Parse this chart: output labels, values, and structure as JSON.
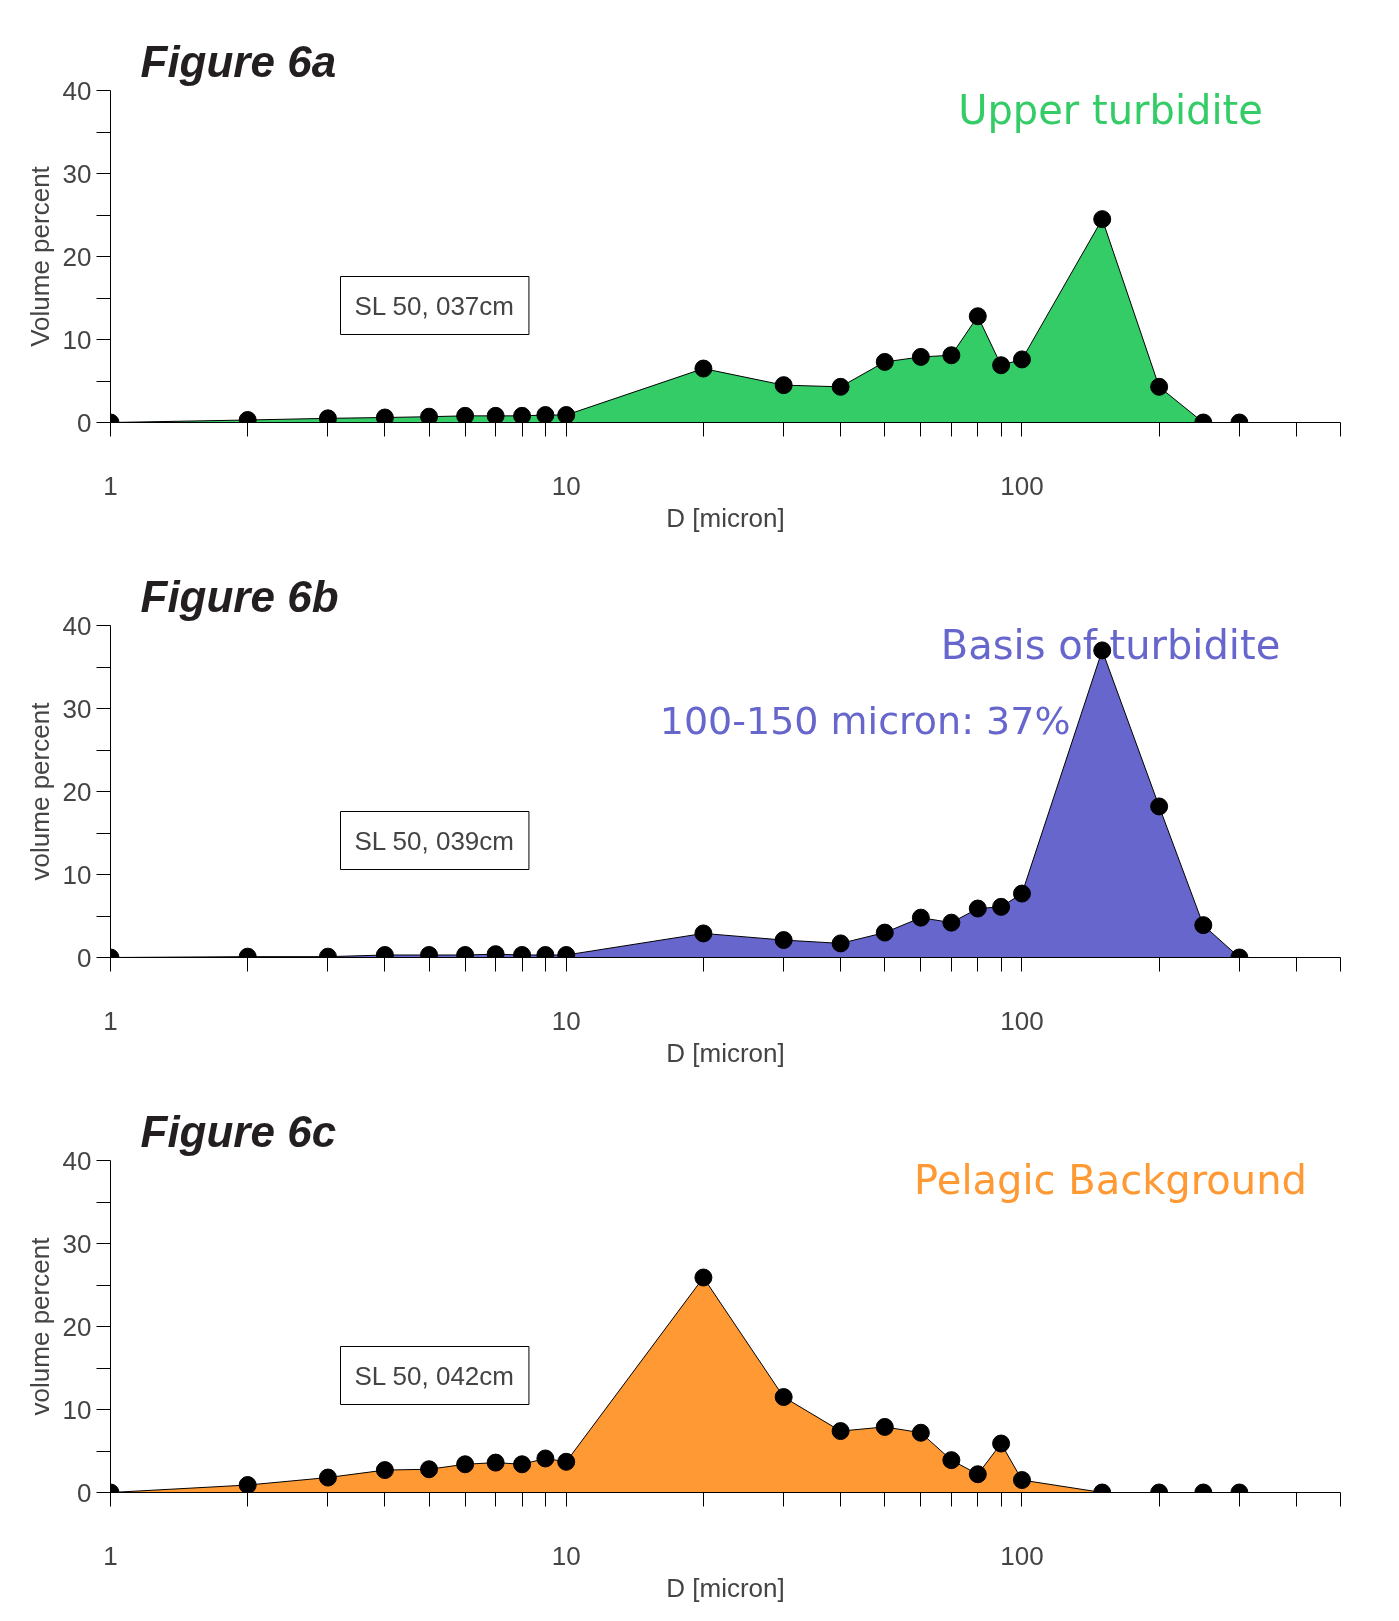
{
  "chart_data": [
    {
      "type": "area",
      "title": "Figure 6a",
      "xlabel": "D [micron]",
      "ylabel": "Volume percent",
      "log": "x",
      "grid": false,
      "marker": "circle",
      "xlim": [
        1,
        500
      ],
      "ylim": [
        0,
        40
      ],
      "xticks": [
        1,
        {
          "value": 2,
          "label": null
        },
        {
          "value": 3,
          "label": null
        },
        {
          "value": 4,
          "label": null
        },
        {
          "value": 5,
          "label": null
        },
        {
          "value": 6,
          "label": null
        },
        {
          "value": 7,
          "label": null
        },
        {
          "value": 8,
          "label": null
        },
        {
          "value": 9,
          "label": null
        },
        10,
        {
          "value": 20,
          "label": null
        },
        {
          "value": 30,
          "label": null
        },
        {
          "value": 40,
          "label": null
        },
        {
          "value": 50,
          "label": null
        },
        {
          "value": 60,
          "label": null
        },
        {
          "value": 70,
          "label": null
        },
        {
          "value": 80,
          "label": null
        },
        {
          "value": 90,
          "label": null
        },
        100,
        {
          "value": 200,
          "label": null
        },
        {
          "value": 300,
          "label": null
        },
        {
          "value": 400,
          "label": null
        },
        {
          "value": 500,
          "label": null
        }
      ],
      "yticks": [
        0,
        {
          "value": 5,
          "label": null
        },
        10,
        {
          "value": 15,
          "label": null
        },
        20,
        {
          "value": 25,
          "label": null
        },
        30,
        {
          "value": 35,
          "label": null
        },
        40
      ],
      "x": [
        1,
        2,
        3,
        4,
        5,
        6,
        7,
        8,
        9,
        10,
        20,
        30,
        40,
        50,
        60,
        70,
        80,
        90,
        100,
        150,
        200,
        250,
        300
      ],
      "series": [
        {
          "color": "#33cc66",
          "values": [
            0,
            0.3,
            0.5,
            0.6,
            0.7,
            0.8,
            0.8,
            0.8,
            0.9,
            0.9,
            6.5,
            4.5,
            4.3,
            7.3,
            7.9,
            8.1,
            12.8,
            6.9,
            7.6,
            24.5,
            4.3,
            0,
            0
          ]
        }
      ],
      "annotations": [
        "Upper turbidite",
        "SL 50, 037cm"
      ]
    },
    {
      "type": "area",
      "title": "Figure 6b",
      "xlabel": "D [micron]",
      "ylabel": "volume percent",
      "log": "x",
      "grid": false,
      "marker": "circle",
      "xlim": [
        1,
        500
      ],
      "ylim": [
        0,
        40
      ],
      "xticks": [
        1,
        {
          "value": 2,
          "label": null
        },
        {
          "value": 3,
          "label": null
        },
        {
          "value": 4,
          "label": null
        },
        {
          "value": 5,
          "label": null
        },
        {
          "value": 6,
          "label": null
        },
        {
          "value": 7,
          "label": null
        },
        {
          "value": 8,
          "label": null
        },
        {
          "value": 9,
          "label": null
        },
        10,
        {
          "value": 20,
          "label": null
        },
        {
          "value": 30,
          "label": null
        },
        {
          "value": 40,
          "label": null
        },
        {
          "value": 50,
          "label": null
        },
        {
          "value": 60,
          "label": null
        },
        {
          "value": 70,
          "label": null
        },
        {
          "value": 80,
          "label": null
        },
        {
          "value": 90,
          "label": null
        },
        100,
        {
          "value": 200,
          "label": null
        },
        {
          "value": 300,
          "label": null
        },
        {
          "value": 400,
          "label": null
        },
        {
          "value": 500,
          "label": null
        }
      ],
      "yticks": [
        0,
        {
          "value": 5,
          "label": null
        },
        10,
        {
          "value": 15,
          "label": null
        },
        20,
        {
          "value": 25,
          "label": null
        },
        30,
        {
          "value": 35,
          "label": null
        },
        40
      ],
      "x": [
        1,
        2,
        3,
        4,
        5,
        6,
        7,
        8,
        9,
        10,
        20,
        30,
        40,
        50,
        60,
        70,
        80,
        90,
        100,
        150,
        200,
        250,
        300
      ],
      "series": [
        {
          "color": "#6666cc",
          "values": [
            0,
            0.1,
            0.1,
            0.3,
            0.3,
            0.3,
            0.4,
            0.3,
            0.3,
            0.3,
            2.9,
            2.1,
            1.7,
            3,
            4.8,
            4.2,
            5.9,
            6.1,
            7.7,
            37,
            18.2,
            3.9,
            0
          ]
        }
      ],
      "annotations": [
        "Basis of turbidite",
        "100-150 micron: 37%",
        "SL 50, 039cm"
      ]
    },
    {
      "type": "area",
      "title": "Figure 6c",
      "xlabel": "D [micron]",
      "ylabel": "volume percent",
      "log": "x",
      "grid": false,
      "marker": "circle",
      "xlim": [
        1,
        500
      ],
      "ylim": [
        0,
        40
      ],
      "xticks": [
        1,
        {
          "value": 2,
          "label": null
        },
        {
          "value": 3,
          "label": null
        },
        {
          "value": 4,
          "label": null
        },
        {
          "value": 5,
          "label": null
        },
        {
          "value": 6,
          "label": null
        },
        {
          "value": 7,
          "label": null
        },
        {
          "value": 8,
          "label": null
        },
        {
          "value": 9,
          "label": null
        },
        10,
        {
          "value": 20,
          "label": null
        },
        {
          "value": 30,
          "label": null
        },
        {
          "value": 40,
          "label": null
        },
        {
          "value": 50,
          "label": null
        },
        {
          "value": 60,
          "label": null
        },
        {
          "value": 70,
          "label": null
        },
        {
          "value": 80,
          "label": null
        },
        {
          "value": 90,
          "label": null
        },
        100,
        {
          "value": 200,
          "label": null
        },
        {
          "value": 300,
          "label": null
        },
        {
          "value": 400,
          "label": null
        },
        {
          "value": 500,
          "label": null
        }
      ],
      "yticks": [
        0,
        {
          "value": 5,
          "label": null
        },
        10,
        {
          "value": 15,
          "label": null
        },
        20,
        {
          "value": 25,
          "label": null
        },
        30,
        {
          "value": 35,
          "label": null
        },
        40
      ],
      "x": [
        1,
        2,
        3,
        4,
        5,
        6,
        7,
        8,
        9,
        10,
        20,
        30,
        40,
        50,
        60,
        70,
        80,
        90,
        100,
        150,
        200,
        250,
        300
      ],
      "series": [
        {
          "color": "#ff9933",
          "values": [
            0,
            0.9,
            1.8,
            2.7,
            2.8,
            3.4,
            3.6,
            3.4,
            4.1,
            3.7,
            25.9,
            11.5,
            7.4,
            7.9,
            7.2,
            3.9,
            2.2,
            5.9,
            1.5,
            0,
            0,
            0,
            0
          ]
        }
      ],
      "annotations": [
        "Pelagic Background",
        "SL 50, 042cm"
      ]
    }
  ]
}
